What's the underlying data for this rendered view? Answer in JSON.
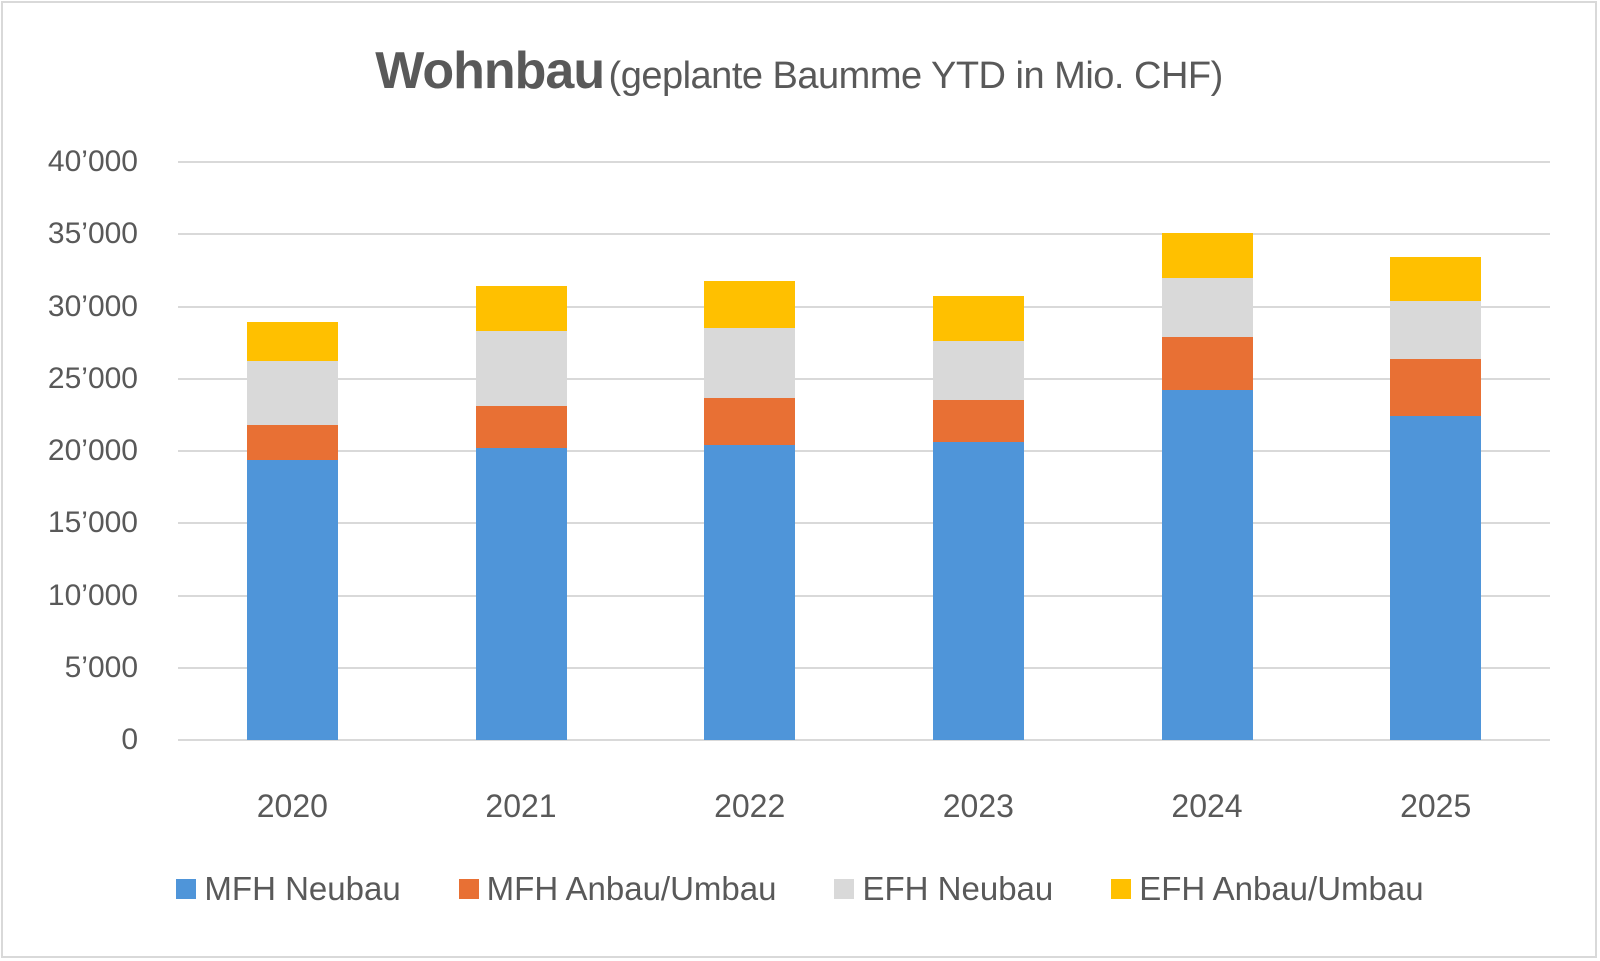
{
  "title": {
    "main": "Wohnbau",
    "sub": "(geplante Baumme YTD in Mio. CHF)"
  },
  "colors": {
    "mfh_neubau": "#4f95d9",
    "mfh_anbau": "#e87034",
    "efh_neubau": "#d9d9d9",
    "efh_anbau": "#ffc000",
    "grid": "#d9d9d9",
    "text": "#595959"
  },
  "y_axis": {
    "ticks": [
      "0",
      "5’000",
      "10’000",
      "15’000",
      "20’000",
      "25’000",
      "30’000",
      "35’000",
      "40’000"
    ]
  },
  "x_axis": {
    "ticks": [
      "2020",
      "2021",
      "2022",
      "2023",
      "2024",
      "2025"
    ]
  },
  "legend": [
    {
      "label": "MFH Neubau",
      "color": "#4f95d9"
    },
    {
      "label": "MFH Anbau/Umbau",
      "color": "#e87034"
    },
    {
      "label": "EFH Neubau",
      "color": "#d9d9d9"
    },
    {
      "label": "EFH Anbau/Umbau",
      "color": "#ffc000"
    }
  ],
  "chart_data": {
    "type": "bar",
    "stacked": true,
    "title": "Wohnbau (geplante Baumme YTD in Mio. CHF)",
    "xlabel": "",
    "ylabel": "",
    "categories": [
      "2020",
      "2021",
      "2022",
      "2023",
      "2024",
      "2025"
    ],
    "series": [
      {
        "name": "MFH Neubau",
        "color": "#4f95d9",
        "values": [
          19400,
          20200,
          20400,
          20600,
          24200,
          22400
        ]
      },
      {
        "name": "MFH Anbau/Umbau",
        "color": "#e87034",
        "values": [
          2400,
          2900,
          3300,
          2900,
          3700,
          4000
        ]
      },
      {
        "name": "EFH Neubau",
        "color": "#d9d9d9",
        "values": [
          4400,
          5200,
          4800,
          4100,
          4100,
          4000
        ]
      },
      {
        "name": "EFH Anbau/Umbau",
        "color": "#ffc000",
        "values": [
          2700,
          3100,
          3300,
          3100,
          3100,
          3000
        ]
      }
    ],
    "totals": [
      28900,
      31400,
      31800,
      30700,
      35100,
      33400
    ],
    "ylim": [
      0,
      40000
    ],
    "yticks": [
      0,
      5000,
      10000,
      15000,
      20000,
      25000,
      30000,
      35000,
      40000
    ],
    "grid": true,
    "legend_position": "bottom"
  }
}
